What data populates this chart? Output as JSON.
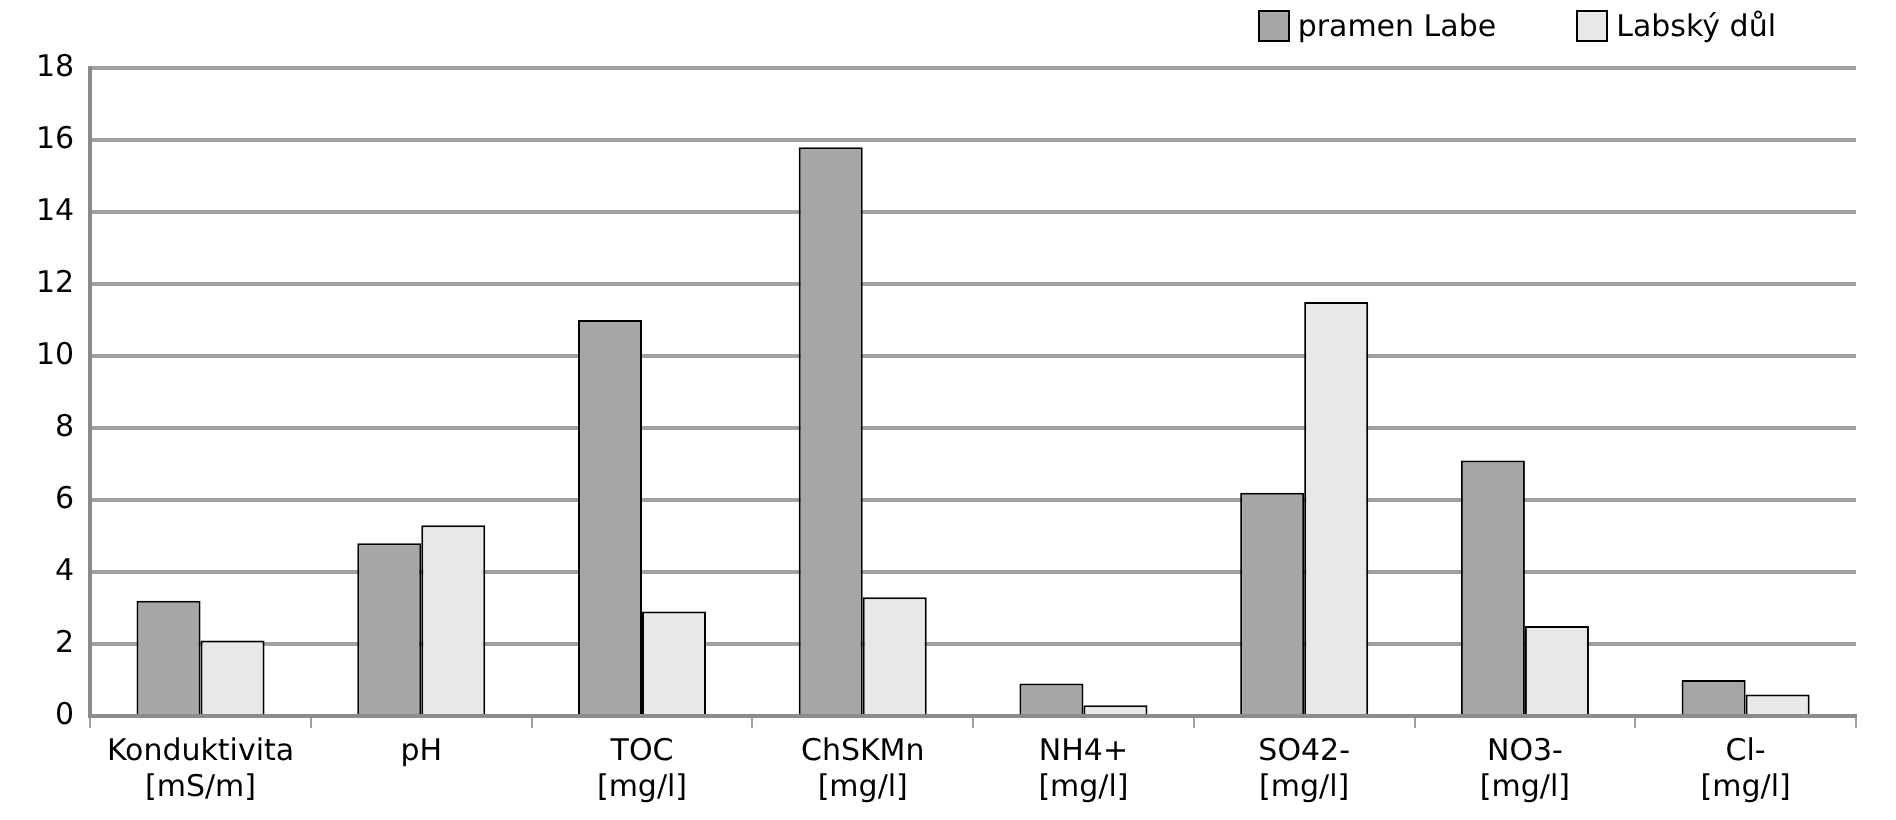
{
  "chart_data": {
    "type": "bar",
    "categories": [
      "Konduktivita [mS/m]",
      "pH",
      "TOC [mg/l]",
      "ChSKMn [mg/l]",
      "NH4+ [mg/l]",
      "SO42- [mg/l]",
      "NO3- [mg/l]",
      "Cl- [mg/l]"
    ],
    "series": [
      {
        "name": "pramen Labe",
        "color": "#a6a6a6",
        "values": [
          3.2,
          4.8,
          11.0,
          15.8,
          0.9,
          6.2,
          7.1,
          1.0
        ]
      },
      {
        "name": "Labský důl",
        "color": "#e8e8e8",
        "values": [
          2.1,
          5.3,
          2.9,
          3.3,
          0.3,
          11.5,
          2.5,
          0.6
        ]
      }
    ],
    "ylim": [
      0,
      18
    ],
    "yticks": [
      0,
      2,
      4,
      6,
      8,
      10,
      12,
      14,
      16,
      18
    ],
    "grid": "y",
    "legend": "top right"
  }
}
